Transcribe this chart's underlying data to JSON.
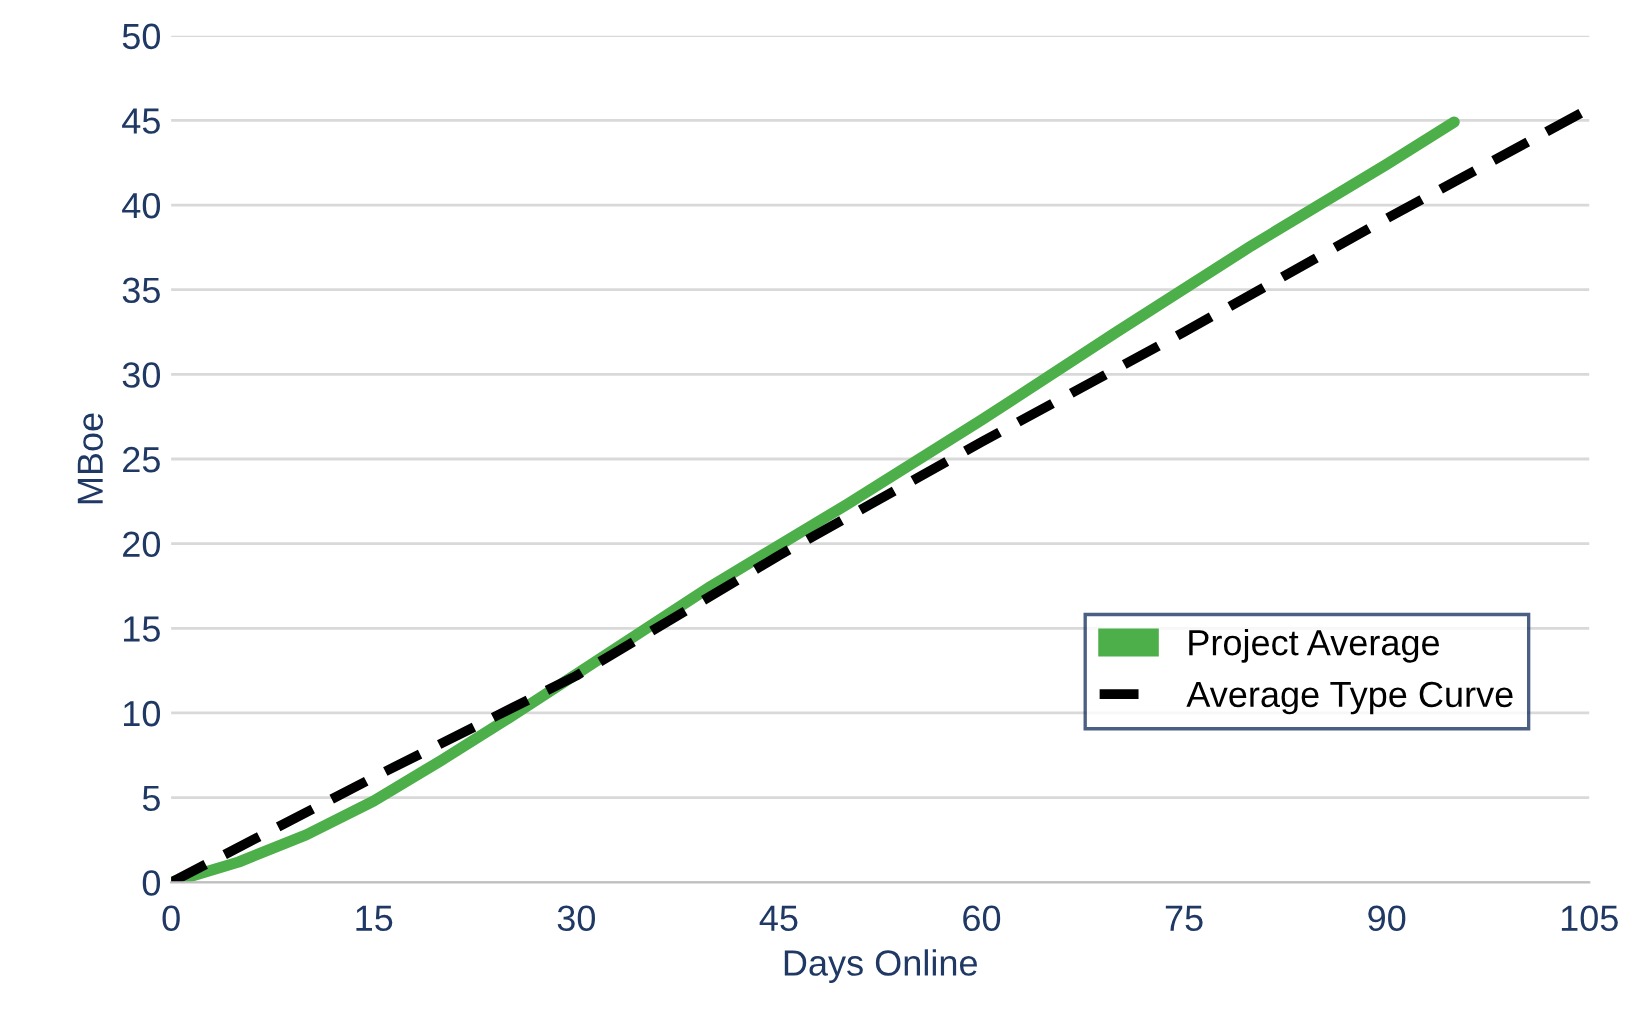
{
  "chart_data": {
    "type": "line",
    "xlabel": "Days Online",
    "ylabel": "MBoe",
    "xlim": [
      0,
      105
    ],
    "xticks": [
      0,
      15,
      30,
      45,
      60,
      75,
      90,
      105
    ],
    "ylim": [
      0,
      50
    ],
    "yticks": [
      0,
      5,
      10,
      15,
      20,
      25,
      30,
      35,
      40,
      45,
      50
    ],
    "grid": "y",
    "legend": "bottom right",
    "series": [
      {
        "name": "Project Average",
        "color": "#4daf4a",
        "line_style": "solid",
        "x": [
          0,
          5,
          10,
          15,
          20,
          25,
          30,
          40,
          50,
          60,
          70,
          80,
          90,
          95
        ],
        "values": [
          0,
          1.2,
          2.8,
          4.8,
          7.2,
          9.7,
          12.3,
          17.5,
          22.3,
          27.3,
          32.5,
          37.6,
          42.4,
          44.9
        ]
      },
      {
        "name": "Average Type Curve",
        "color": "#000000",
        "line_style": "dashed",
        "x": [
          0,
          15,
          30,
          45,
          60,
          75,
          90,
          105
        ],
        "values": [
          0,
          6.2,
          12.2,
          19.3,
          26.0,
          32.5,
          39.2,
          45.7
        ]
      }
    ]
  }
}
